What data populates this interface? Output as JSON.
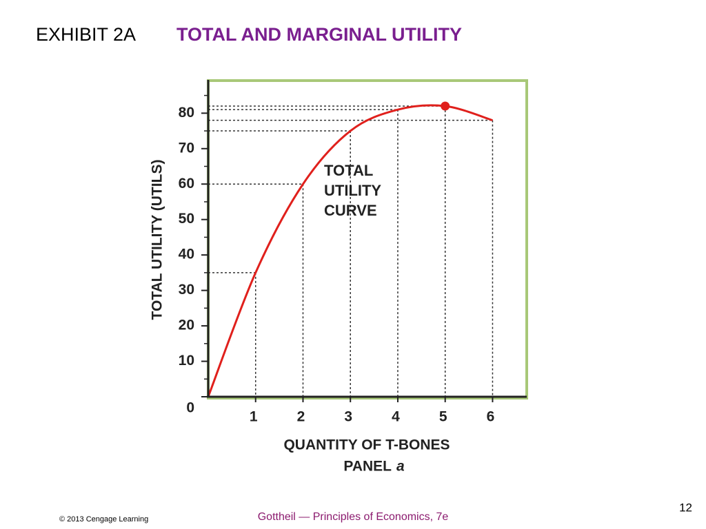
{
  "chart_data": {
    "type": "line",
    "exhibit": "EXHIBIT 2A",
    "title": "TOTAL AND MARGINAL UTILITY",
    "xlabel": "QUANTITY OF T-BONES",
    "panel": "PANEL",
    "panel_letter": "a",
    "ylabel": "TOTAL UTILITY (UTILS)",
    "annotation": [
      "TOTAL",
      "UTILITY",
      "CURVE"
    ],
    "x": [
      0,
      1,
      2,
      3,
      4,
      5,
      6
    ],
    "series": [
      {
        "name": "Total utility",
        "color": "#e0201c",
        "values": [
          0,
          35,
          60,
          75,
          81,
          82,
          78
        ],
        "highlight_point": 5
      }
    ],
    "xlim": [
      0,
      6.75
    ],
    "ylim": [
      0,
      89
    ],
    "xticks": [
      1,
      2,
      3,
      4,
      5,
      6
    ],
    "yticks": [
      0,
      10,
      20,
      30,
      40,
      50,
      60,
      70,
      80
    ],
    "minor_yticks": [
      5,
      15,
      25,
      35,
      45,
      55,
      65,
      75,
      85
    ],
    "drop_lines": true,
    "frame_color": "#a8c878"
  },
  "footer": {
    "copyright": "© 2013 Cengage Learning",
    "book": "Gottheil — Principles of Economics, 7e",
    "page": "12"
  }
}
